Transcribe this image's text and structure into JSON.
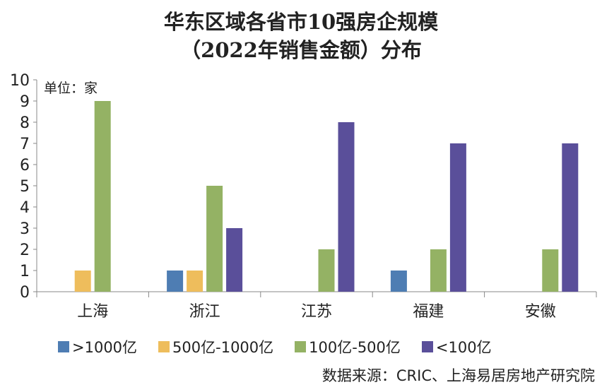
{
  "chart_data": {
    "type": "bar",
    "title": [
      "华东区域各省市10强房企规模",
      "（2022年销售金额）分布"
    ],
    "unit_label": "单位：家",
    "categories": [
      "上海",
      "浙江",
      "江苏",
      "福建",
      "安徽"
    ],
    "series": [
      {
        "name": ">1000亿",
        "color": "#4E7DB3",
        "values": [
          0,
          1,
          0,
          1,
          0
        ]
      },
      {
        "name": "500亿-1000亿",
        "color": "#EEBD5C",
        "values": [
          1,
          1,
          0,
          0,
          0
        ]
      },
      {
        "name": "100亿-500亿",
        "color": "#94B264",
        "values": [
          9,
          5,
          2,
          2,
          2
        ]
      },
      {
        "name": "<100亿",
        "color": "#5A4F9A",
        "values": [
          0,
          3,
          8,
          7,
          7
        ]
      }
    ],
    "ylim": [
      0,
      10
    ],
    "yticks": [
      "0",
      "1",
      "2",
      "3",
      "4",
      "5",
      "6",
      "7",
      "8",
      "9",
      "10"
    ],
    "grid": false,
    "legend_position": "bottom",
    "source": "数据来源：CRIC、上海易居房地产研究院"
  }
}
